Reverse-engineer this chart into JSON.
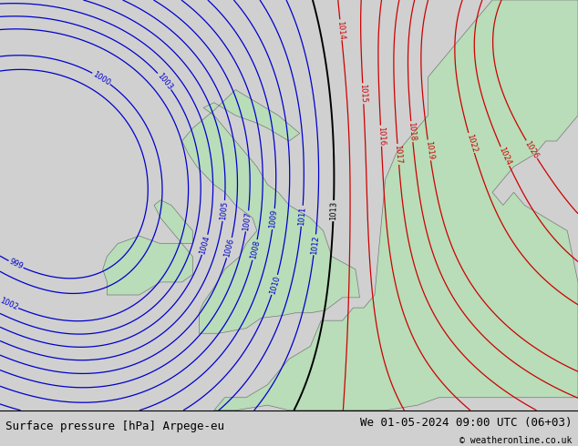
{
  "title_left": "Surface pressure [hPa] Arpege-eu",
  "title_right": "We 01-05-2024 09:00 UTC (06+03)",
  "copyright": "© weatheronline.co.uk",
  "bg_color": "#d0d0d0",
  "land_color": "#b8ddb8",
  "sea_color": "#d0d0d0",
  "blue_contour_color": "#0000cc",
  "red_contour_color": "#cc0000",
  "black_contour_color": "#000000",
  "bottom_bar_color": "#ffffff",
  "font_size_title": 9,
  "xlim": [
    -15,
    12
  ],
  "ylim": [
    47,
    63
  ],
  "blue_isobars": [
    999,
    1000,
    1002,
    1003,
    1004,
    1005,
    1006,
    1007,
    1008,
    1009,
    1010,
    1011,
    1012
  ],
  "red_isobars": [
    1014,
    1015,
    1016,
    1017,
    1018,
    1019,
    1022,
    1024,
    1026
  ],
  "black_isobars": [
    1013
  ]
}
